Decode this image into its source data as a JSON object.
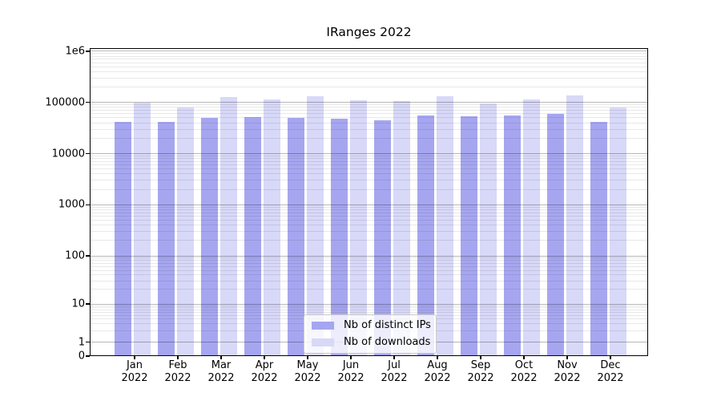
{
  "chart_data": {
    "type": "bar",
    "title": "IRanges 2022",
    "yscale": "symlog",
    "grid": true,
    "legend_position": "lower center",
    "ylim": [
      0,
      1150000
    ],
    "y_tick_labels": [
      "1e6",
      "100000",
      "10000",
      "1000",
      "100",
      "10",
      "1",
      "0"
    ],
    "categories": [
      "Jan 2022",
      "Feb 2022",
      "Mar 2022",
      "Apr 2022",
      "May 2022",
      "Jun 2022",
      "Jul 2022",
      "Aug 2022",
      "Sep 2022",
      "Oct 2022",
      "Nov 2022",
      "Dec 2022"
    ],
    "series": [
      {
        "name": "Nb of distinct IPs",
        "color": "#a6a6f0",
        "values": [
          41000,
          41000,
          50000,
          51000,
          49000,
          48000,
          44000,
          55000,
          53000,
          55000,
          60000,
          41000
        ]
      },
      {
        "name": "Nb of downloads",
        "color": "#d8d8f8",
        "values": [
          99000,
          79000,
          126000,
          113000,
          133000,
          110000,
          107000,
          130000,
          97000,
          116000,
          135000,
          80000
        ]
      }
    ]
  }
}
